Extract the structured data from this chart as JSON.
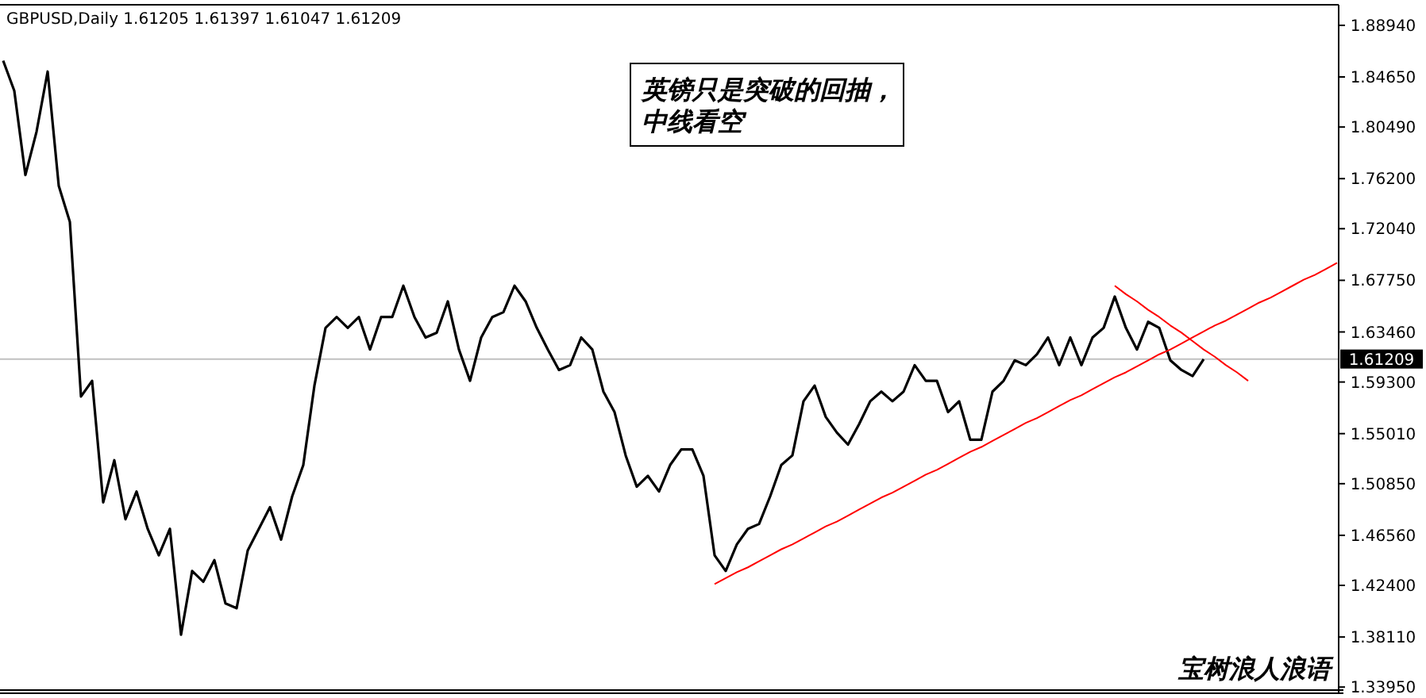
{
  "chart_data": {
    "type": "line",
    "title": "GBPUSD,Daily  1.61205 1.61397 1.61047 1.61209",
    "categories": [
      null,
      null,
      null,
      null,
      null,
      null,
      null,
      null,
      null,
      null,
      null,
      null,
      null,
      null,
      null,
      null,
      null,
      null,
      null,
      null,
      null,
      null,
      null,
      null,
      null,
      null,
      null,
      null,
      null,
      null,
      null,
      null,
      null,
      null,
      null,
      null,
      null,
      null,
      null,
      null,
      null,
      null,
      null,
      null,
      null,
      null,
      null,
      null,
      null,
      null,
      null,
      null,
      null,
      null,
      null,
      null,
      null,
      null,
      null,
      null,
      null,
      null,
      null,
      null,
      null,
      null,
      null,
      null,
      null,
      null,
      null,
      null,
      null,
      null,
      null,
      null,
      null,
      null,
      null,
      null,
      null,
      null,
      null,
      null,
      null,
      null,
      null,
      null,
      null,
      null,
      null,
      null,
      null,
      null,
      null,
      null,
      null,
      null,
      null,
      null,
      null,
      null,
      null,
      null,
      null,
      null,
      null,
      null,
      null,
      null,
      null,
      null,
      null,
      null,
      null,
      null,
      null,
      null,
      null,
      null,
      null
    ],
    "series": [
      {
        "color": "#000000",
        "values": [
          1.86,
          1.835,
          1.765,
          1.801,
          1.851,
          1.756,
          1.726,
          1.581,
          1.594,
          1.493,
          1.528,
          1.479,
          1.502,
          1.471,
          1.449,
          1.471,
          1.383,
          1.436,
          1.427,
          1.445,
          1.409,
          1.405,
          1.453,
          1.471,
          1.489,
          1.462,
          1.498,
          1.524,
          1.59,
          1.638,
          1.647,
          1.638,
          1.647,
          1.62,
          1.647,
          1.647,
          1.673,
          1.647,
          1.63,
          1.634,
          1.66,
          1.62,
          1.594,
          1.63,
          1.647,
          1.651,
          1.673,
          1.66,
          1.638,
          1.62,
          1.603,
          1.607,
          1.63,
          1.62,
          1.585,
          1.568,
          1.532,
          1.506,
          1.515,
          1.502,
          1.524,
          1.537,
          1.537,
          1.515,
          1.449,
          1.436,
          1.458,
          1.471,
          1.475,
          1.498,
          1.524,
          1.532,
          1.577,
          1.59,
          1.564,
          1.551,
          1.541,
          1.558,
          1.577,
          1.585,
          1.577,
          1.585,
          1.607,
          1.594,
          1.594,
          1.568,
          1.577,
          1.545,
          1.545,
          1.585,
          1.594,
          1.611,
          1.607,
          1.616,
          1.63,
          1.607,
          1.63,
          1.607,
          1.63,
          1.638,
          1.664,
          1.638,
          1.62,
          1.643,
          1.638,
          1.611,
          1.603,
          1.598,
          1.612,
          null,
          null,
          null,
          null,
          null,
          null,
          null,
          null,
          null,
          null,
          null,
          null
        ]
      },
      {
        "type": "line",
        "color": "#ff0000",
        "values": [
          null,
          null,
          null,
          null,
          null,
          null,
          null,
          null,
          null,
          null,
          null,
          null,
          null,
          null,
          null,
          null,
          null,
          null,
          null,
          null,
          null,
          null,
          null,
          null,
          null,
          null,
          null,
          null,
          null,
          null,
          null,
          null,
          null,
          null,
          null,
          null,
          null,
          null,
          null,
          null,
          null,
          null,
          null,
          null,
          null,
          null,
          null,
          null,
          null,
          null,
          null,
          null,
          null,
          null,
          null,
          null,
          null,
          null,
          null,
          null,
          null,
          null,
          null,
          null,
          1.425,
          1.43,
          1.435,
          1.439,
          1.444,
          1.449,
          1.454,
          1.458,
          1.463,
          1.468,
          1.473,
          1.477,
          1.482,
          1.487,
          1.492,
          1.497,
          1.501,
          1.506,
          1.511,
          1.516,
          1.52,
          1.525,
          1.53,
          1.535,
          1.539,
          1.544,
          1.549,
          1.554,
          1.559,
          1.563,
          1.568,
          1.573,
          1.578,
          1.582,
          1.587,
          1.592,
          1.597,
          1.601,
          1.606,
          1.611,
          1.616,
          1.62,
          1.625,
          1.63,
          1.635,
          1.64,
          1.644,
          1.649,
          1.654,
          1.659,
          1.663,
          1.668,
          1.673,
          1.678,
          1.682,
          1.687,
          1.692
        ]
      },
      {
        "type": "line",
        "color": "#ff0000",
        "values": [
          null,
          null,
          null,
          null,
          null,
          null,
          null,
          null,
          null,
          null,
          null,
          null,
          null,
          null,
          null,
          null,
          null,
          null,
          null,
          null,
          null,
          null,
          null,
          null,
          null,
          null,
          null,
          null,
          null,
          null,
          null,
          null,
          null,
          null,
          null,
          null,
          null,
          null,
          null,
          null,
          null,
          null,
          null,
          null,
          null,
          null,
          null,
          null,
          null,
          null,
          null,
          null,
          null,
          null,
          null,
          null,
          null,
          null,
          null,
          null,
          null,
          null,
          null,
          null,
          null,
          null,
          null,
          null,
          null,
          null,
          null,
          null,
          null,
          null,
          null,
          null,
          null,
          null,
          null,
          null,
          null,
          null,
          null,
          null,
          null,
          null,
          null,
          null,
          null,
          null,
          null,
          null,
          null,
          null,
          null,
          null,
          null,
          null,
          null,
          null,
          1.673,
          1.666,
          1.66,
          1.653,
          1.647,
          1.64,
          1.634,
          1.627,
          1.62,
          1.614,
          1.607,
          1.601,
          1.594,
          null,
          null,
          null,
          null,
          null,
          null,
          null,
          null
        ]
      }
    ],
    "ylim": [
      1.337,
      1.9065
    ],
    "yticks": [
      {
        "value": 1.8894,
        "label": "1.88940"
      },
      {
        "value": 1.8465,
        "label": "1.84650"
      },
      {
        "value": 1.8049,
        "label": "1.80490"
      },
      {
        "value": 1.762,
        "label": "1.76200"
      },
      {
        "value": 1.7204,
        "label": "1.72040"
      },
      {
        "value": 1.6775,
        "label": "1.67750"
      },
      {
        "value": 1.6346,
        "label": "1.63460"
      },
      {
        "value": 1.593,
        "label": "1.59300"
      },
      {
        "value": 1.5501,
        "label": "1.55010"
      },
      {
        "value": 1.5085,
        "label": "1.50850"
      },
      {
        "value": 1.4656,
        "label": "1.46560"
      },
      {
        "value": 1.424,
        "label": "1.42400"
      },
      {
        "value": 1.3811,
        "label": "1.38110"
      },
      {
        "value": 1.3395,
        "label": "1.33950"
      }
    ],
    "ref_lines": [
      {
        "axis": "y",
        "value": 1.61209,
        "label": "1.61209",
        "color": "#c0c0c0"
      }
    ],
    "annotations": [
      "英镑只是突破的回抽，中线看空",
      "宝树浪人浪语"
    ],
    "tick_labels": "y",
    "grid": false
  }
}
